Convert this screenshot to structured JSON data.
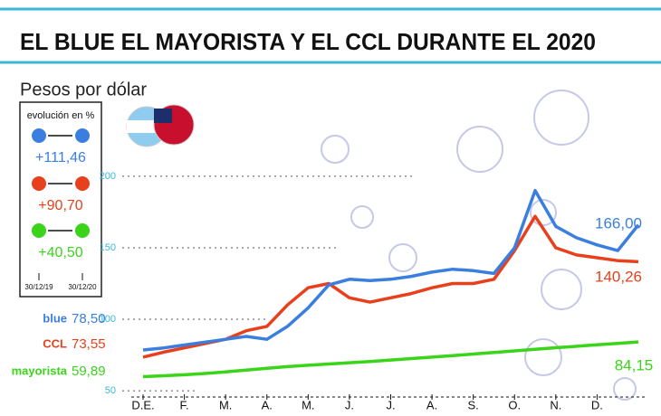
{
  "chart_data": {
    "type": "line",
    "title": "EL BLUE EL MAYORISTA Y EL CCL DURANTE EL 2020",
    "subtitle": "Pesos por dólar",
    "evolution_title": "evolución en %",
    "dates": [
      "30/12/19",
      "30/12/20"
    ],
    "categories": [
      "D.E.",
      null,
      "F.",
      null,
      "M.",
      null,
      "A.",
      null,
      "M.",
      null,
      "J.",
      null,
      "J.",
      null,
      "A.",
      null,
      "S.",
      null,
      "O.",
      null,
      "N.",
      null,
      "D.",
      null,
      null
    ],
    "series": [
      {
        "name": "blue",
        "color": "#3a7fe0",
        "change": "+111,46",
        "start_label": "78,50",
        "end_label": "166,00",
        "values": [
          78.5,
          80,
          82,
          84,
          86,
          88,
          86,
          95,
          108,
          124,
          128,
          127,
          128,
          130,
          133,
          135,
          134,
          132,
          150,
          190,
          165,
          157,
          152,
          148,
          166
        ]
      },
      {
        "name": "CCL",
        "color": "#e8401c",
        "change": "+90,70",
        "start_label": "73,55",
        "end_label": "140,26",
        "values": [
          73.55,
          77,
          80,
          83,
          86,
          92,
          95,
          110,
          122,
          125,
          115,
          112,
          115,
          118,
          122,
          125,
          125,
          128,
          148,
          172,
          150,
          145,
          143,
          141,
          140.26
        ]
      },
      {
        "name": "mayorista",
        "color": "#3ad41a",
        "change": "+40,50",
        "start_label": "59,89",
        "end_label": "84,15",
        "values": [
          59.89,
          60.5,
          61.2,
          62.1,
          63.2,
          64.5,
          65.7,
          66.9,
          67.8,
          68.7,
          69.6,
          70.5,
          71.5,
          72.5,
          73.5,
          74.6,
          75.7,
          76.8,
          77.9,
          79,
          80.1,
          81.1,
          82.1,
          83.1,
          84.15
        ]
      }
    ],
    "ylim": [
      45,
      205
    ],
    "yticks": [
      50,
      100,
      150,
      200
    ],
    "grid": true
  }
}
